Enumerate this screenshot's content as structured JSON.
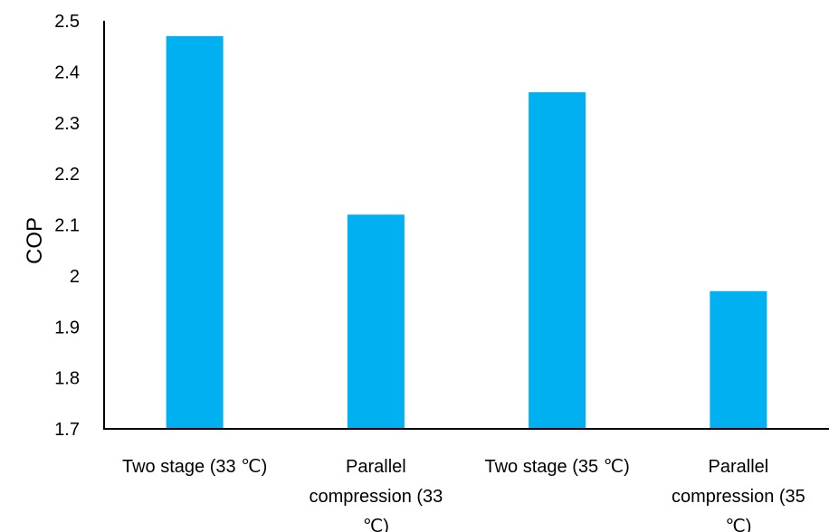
{
  "chart_data": {
    "type": "bar",
    "categories": [
      [
        "Two stage (33 ℃)"
      ],
      [
        "Parallel",
        "compression (33",
        "℃)"
      ],
      [
        "Two stage (35 ℃)"
      ],
      [
        "Parallel",
        "compression (35",
        "℃)"
      ]
    ],
    "values": [
      2.47,
      2.12,
      2.36,
      1.97
    ],
    "xlabel": "",
    "ylabel": "COP",
    "ylim": [
      1.7,
      2.5
    ],
    "yticks": [
      "1.7",
      "1.8",
      "1.9",
      "2",
      "2.1",
      "2.2",
      "2.3",
      "2.4",
      "2.5"
    ],
    "grid": false,
    "bar_color": "#00B0F0",
    "axis_color": "#000000"
  }
}
